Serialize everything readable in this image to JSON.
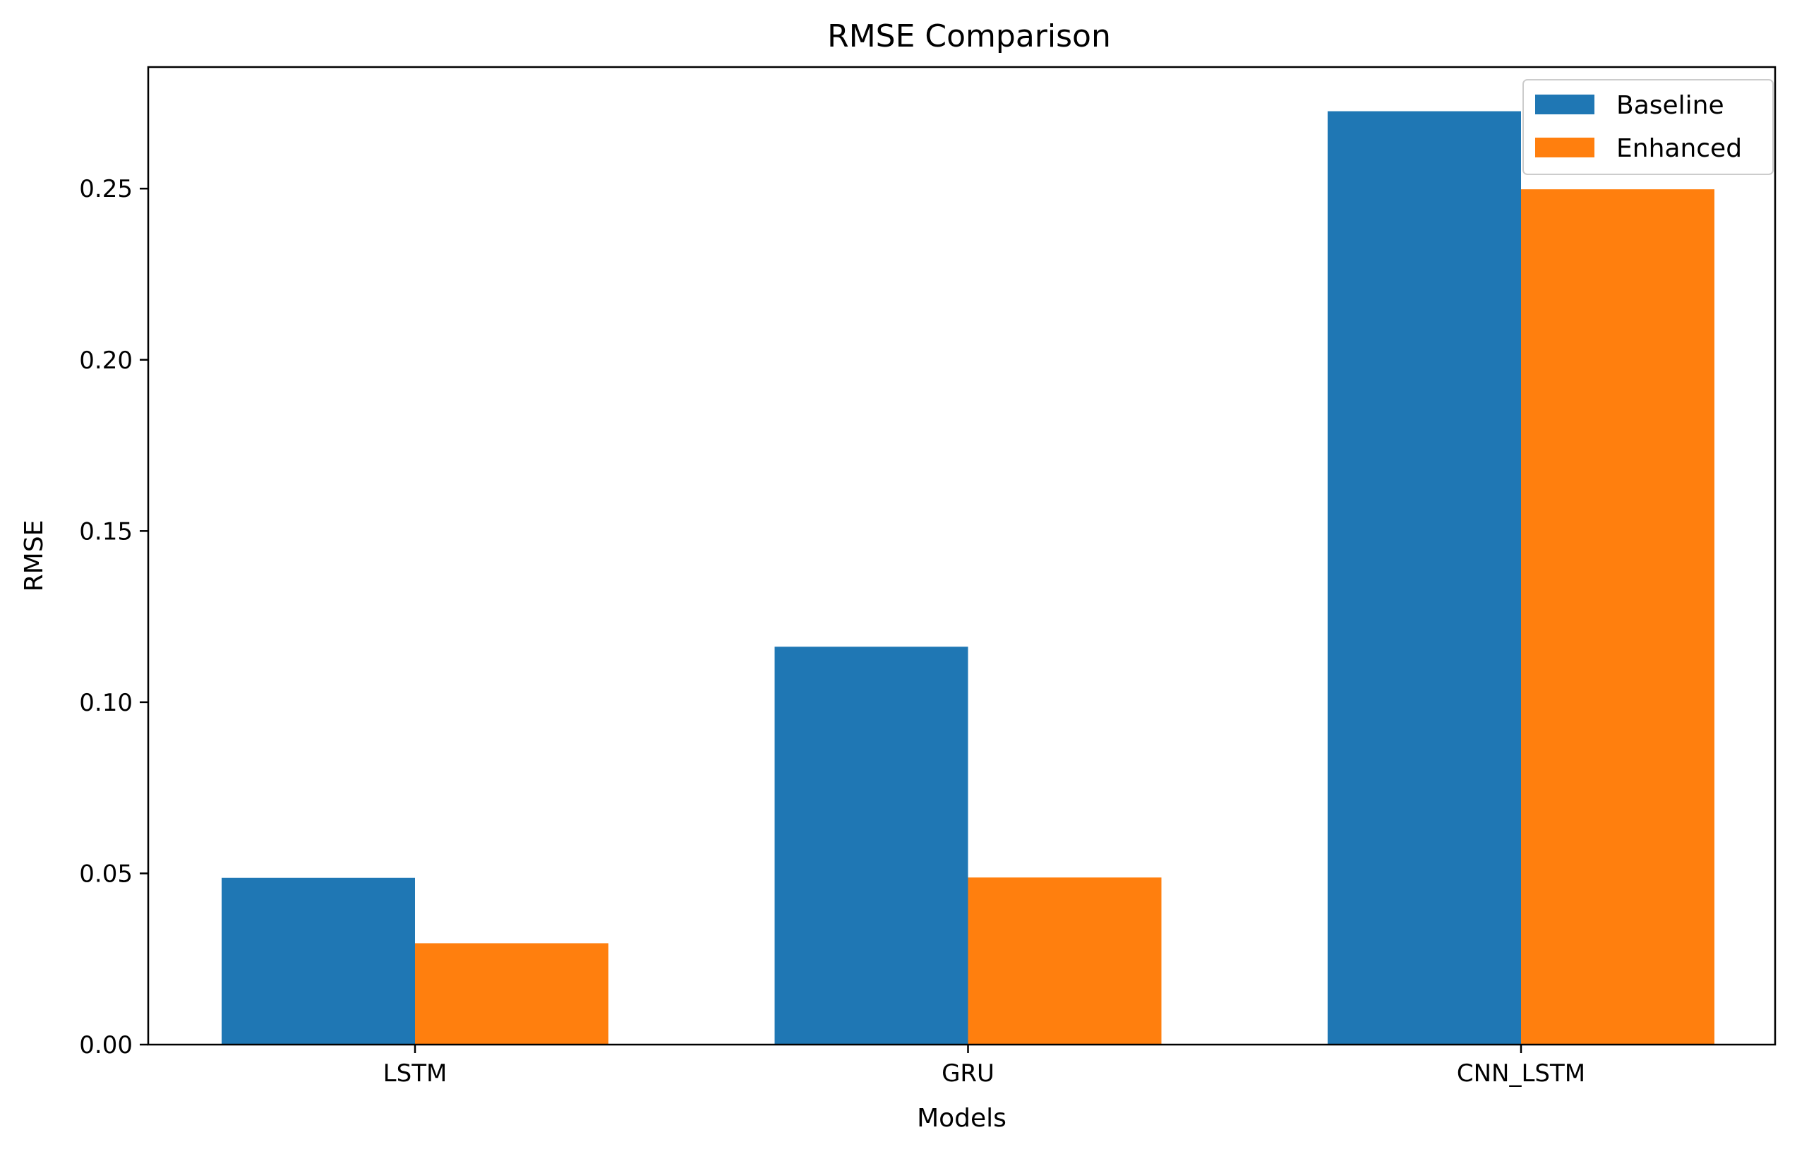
{
  "chart_data": {
    "type": "bar",
    "title": "RMSE Comparison",
    "xlabel": "Models",
    "ylabel": "RMSE",
    "categories": [
      "LSTM",
      "GRU",
      "CNN_LSTM"
    ],
    "series": [
      {
        "name": "Baseline",
        "color": "#1f77b4",
        "values": [
          0.0487,
          0.1162,
          0.2726
        ]
      },
      {
        "name": "Enhanced",
        "color": "#ff7f0e",
        "values": [
          0.0296,
          0.0488,
          0.2498
        ]
      }
    ],
    "ylim": [
      0,
      0.2855
    ],
    "yticks": [
      0.0,
      0.05,
      0.1,
      0.15,
      0.2,
      0.25
    ],
    "ytick_labels": [
      "0.00",
      "0.05",
      "0.10",
      "0.15",
      "0.20",
      "0.25"
    ],
    "grid": false,
    "legend_position": "top-right"
  }
}
